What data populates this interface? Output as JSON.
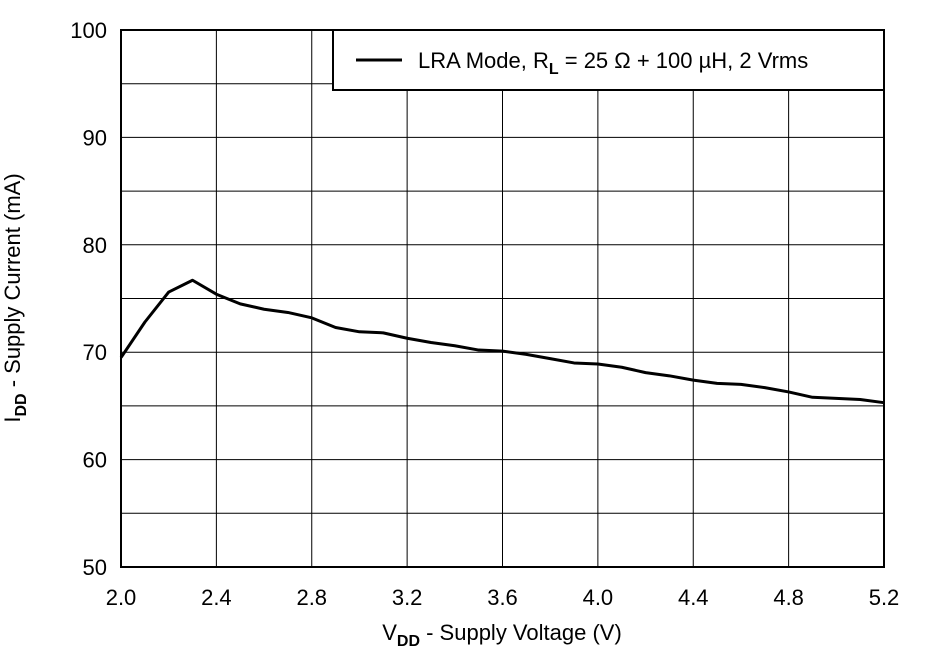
{
  "chart_data": {
    "type": "line",
    "x_label": [
      {
        "text": "V"
      },
      {
        "text": "DD",
        "sub": true
      },
      {
        "text": " - Supply Voltage (V)"
      }
    ],
    "y_label": [
      {
        "text": "I"
      },
      {
        "text": "DD",
        "sub": true
      },
      {
        "text": " - Supply Current (mA)"
      }
    ],
    "x": [
      2.0,
      2.1,
      2.2,
      2.3,
      2.4,
      2.5,
      2.6,
      2.7,
      2.8,
      2.9,
      3.0,
      3.1,
      3.2,
      3.3,
      3.4,
      3.5,
      3.6,
      3.7,
      3.8,
      3.9,
      4.0,
      4.1,
      4.2,
      4.3,
      4.4,
      4.5,
      4.6,
      4.7,
      4.8,
      4.9,
      5.0,
      5.1,
      5.2
    ],
    "series": [
      {
        "name": [
          {
            "text": "LRA Mode, R"
          },
          {
            "text": "L",
            "sub": true
          },
          {
            "text": " = 25 Ω + 100 µH, 2 Vrms"
          }
        ],
        "color": "#000000",
        "values": [
          69.5,
          72.8,
          75.6,
          76.7,
          75.4,
          74.5,
          74.0,
          73.7,
          73.2,
          72.3,
          71.9,
          71.8,
          71.3,
          70.9,
          70.6,
          70.2,
          70.1,
          69.8,
          69.4,
          69.0,
          68.9,
          68.6,
          68.1,
          67.8,
          67.4,
          67.1,
          67.0,
          66.7,
          66.3,
          65.8,
          65.7,
          65.6,
          65.3
        ]
      }
    ],
    "xlim": [
      2.0,
      5.2
    ],
    "xticks": [
      {
        "value": 2.0,
        "label": "2.0"
      },
      2.4,
      2.8,
      3.2,
      3.6,
      {
        "value": 4.0,
        "label": "4.0"
      },
      4.4,
      4.8,
      5.2
    ],
    "ylim": [
      50,
      100
    ],
    "yticks": [
      50,
      60,
      70,
      80,
      90,
      100
    ],
    "yminorticks": [
      55,
      65,
      75,
      85,
      95
    ],
    "grid": true,
    "legend": "upper right"
  }
}
